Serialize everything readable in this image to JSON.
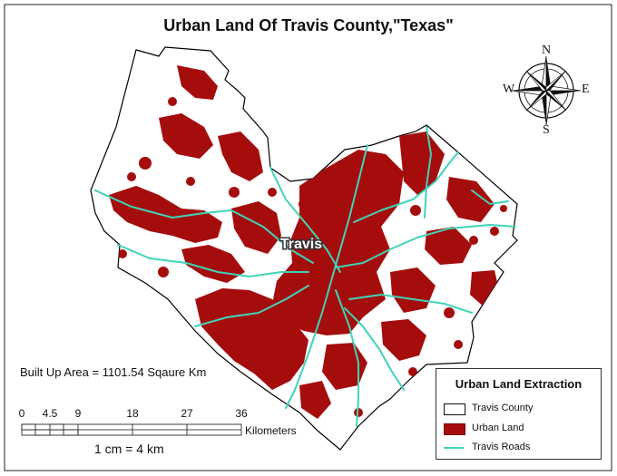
{
  "title": "Urban Land Of Travis County,\"Texas\"",
  "map_label": "Travis",
  "built_up_text": "Built Up Area = 1101.54 Sqaure Km",
  "scale": {
    "ticks": [
      "0",
      "4.5",
      "9",
      "18",
      "27",
      "36"
    ],
    "unit": "Kilometers",
    "ratio": "1 cm = 4 km"
  },
  "compass": {
    "n": "N",
    "s": "S",
    "e": "E",
    "w": "W"
  },
  "legend": {
    "title": "Urban Land Extraction",
    "items": [
      {
        "label": "Travis County",
        "color": "#ffffff"
      },
      {
        "label": "Urban Land",
        "color": "#a50d0d"
      },
      {
        "label": "Travis Roads",
        "color": "#3fd3b8"
      }
    ]
  },
  "colors": {
    "urban": "#a50d0d",
    "roads": "#3fd3b8",
    "boundary": "#000000"
  }
}
